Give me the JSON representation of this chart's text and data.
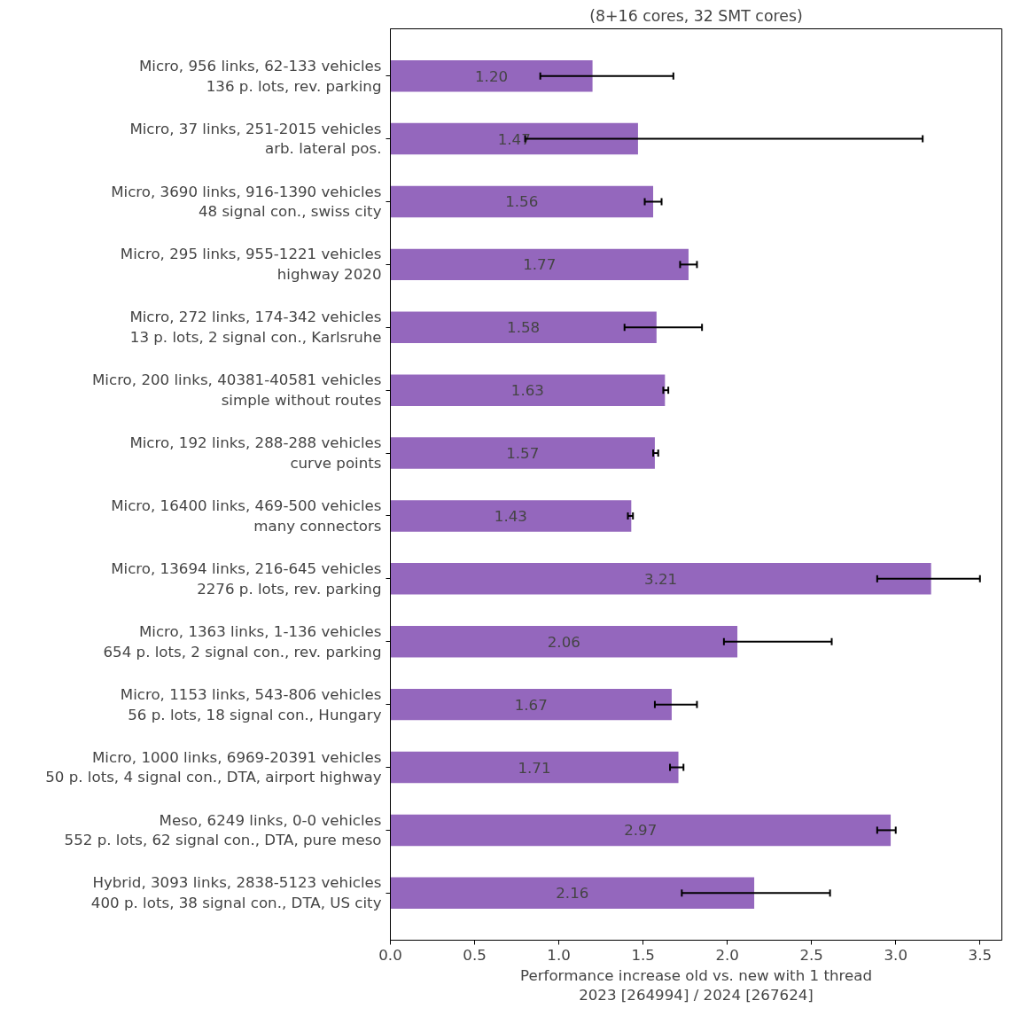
{
  "chart_data": {
    "type": "bar",
    "orientation": "horizontal",
    "title": "(8+16 cores, 32 SMT cores)",
    "xlabel": "Performance increase old vs. new with 1 thread\n2023 [264994] / 2024 [267624]",
    "categories": [
      "Micro, 956 links, 62-133 vehicles\n136 p. lots, rev. parking",
      "Micro, 37 links, 251-2015 vehicles\narb. lateral pos.",
      "Micro, 3690 links, 916-1390 vehicles\n48 signal con., swiss city",
      "Micro, 295 links, 955-1221 vehicles\nhighway 2020",
      "Micro, 272 links, 174-342 vehicles\n13 p. lots, 2 signal con., Karlsruhe",
      "Micro, 200 links, 40381-40581 vehicles\nsimple without routes",
      "Micro, 192 links, 288-288 vehicles\ncurve points",
      "Micro, 16400 links, 469-500 vehicles\nmany connectors",
      "Micro, 13694 links, 216-645 vehicles\n2276 p. lots, rev. parking",
      "Micro, 1363 links, 1-136 vehicles\n654 p. lots, 2 signal con., rev. parking",
      "Micro, 1153 links, 543-806 vehicles\n56 p. lots, 18 signal con., Hungary",
      "Micro, 1000 links, 6969-20391 vehicles\n50 p. lots, 4 signal con., DTA, airport highway",
      "Meso, 6249 links, 0-0 vehicles\n552 p. lots, 62 signal con., DTA, pure meso",
      "Hybrid, 3093 links, 2838-5123 vehicles\n400 p. lots, 38 signal con., DTA, US city"
    ],
    "values": [
      1.2,
      1.47,
      1.56,
      1.77,
      1.58,
      1.63,
      1.57,
      1.43,
      3.21,
      2.06,
      1.67,
      1.71,
      2.97,
      2.16
    ],
    "errors": [
      [
        0.89,
        1.68
      ],
      [
        0.8,
        3.16
      ],
      [
        1.51,
        1.61
      ],
      [
        1.72,
        1.82
      ],
      [
        1.39,
        1.85
      ],
      [
        1.62,
        1.65
      ],
      [
        1.56,
        1.59
      ],
      [
        1.41,
        1.44
      ],
      [
        2.89,
        3.5
      ],
      [
        1.98,
        2.62
      ],
      [
        1.57,
        1.82
      ],
      [
        1.66,
        1.74
      ],
      [
        2.89,
        3.0
      ],
      [
        1.73,
        2.61
      ]
    ],
    "value_labels": [
      "1.20",
      "1.47",
      "1.56",
      "1.77",
      "1.58",
      "1.63",
      "1.57",
      "1.43",
      "3.21",
      "2.06",
      "1.67",
      "1.71",
      "2.97",
      "2.16"
    ],
    "color": "#9467bd",
    "grid": false,
    "xlim": [
      0,
      3.63
    ],
    "xticks": [
      {
        "value": 0,
        "label": "0.0"
      },
      0.5,
      {
        "value": 1,
        "label": "1.0"
      },
      1.5,
      {
        "value": 2,
        "label": "2.0"
      },
      2.5,
      {
        "value": 3,
        "label": "3.0"
      },
      3.5
    ]
  }
}
